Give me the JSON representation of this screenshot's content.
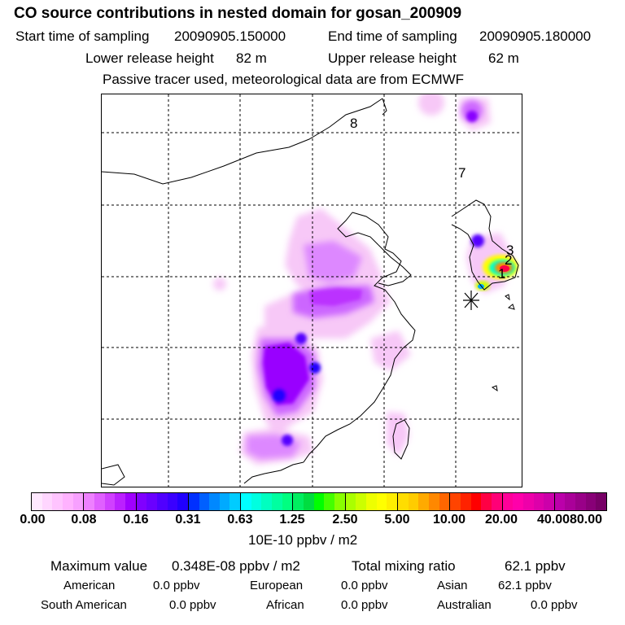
{
  "header": {
    "title": "CO  source contributions in nested domain for gosan_200909",
    "start_label": "Start time of sampling",
    "start_value": "20090905.150000",
    "end_label": "End time of sampling",
    "end_value": "20090905.180000",
    "lower_label": "Lower release height",
    "lower_value": "82 m",
    "upper_label": "Upper release height",
    "upper_value": "62 m",
    "note": "Passive tracer used, meteorological data are from ECMWF"
  },
  "map": {
    "region_labels": [
      "8",
      "7",
      "3",
      "2",
      "1"
    ],
    "receptor_marker": "asterisk",
    "colors": {
      "light": "#f7c8f7",
      "mid": "#cc66ff",
      "purple": "#8800ff",
      "blue": "#2200ff",
      "hotspot": "#ff0044"
    }
  },
  "colorbar": {
    "ticks": [
      "0.00",
      "0.08",
      "0.16",
      "0.31",
      "0.63",
      "1.25",
      "2.50",
      "5.00",
      "10.00",
      "20.00",
      "40.00",
      "80.00"
    ],
    "units": "10E-10 ppbv / m2",
    "colors": [
      "#ffe8ff",
      "#ffd6ff",
      "#ffc4ff",
      "#ffb2ff",
      "#f7a0ff",
      "#ee80ff",
      "#e060ff",
      "#d040ff",
      "#bb20ff",
      "#a000ff",
      "#8000ff",
      "#6a00ff",
      "#5000ff",
      "#3a00ff",
      "#2000ff",
      "#0030ff",
      "#0060ff",
      "#0088ff",
      "#00aaff",
      "#00ccff",
      "#00ffff",
      "#00ffe0",
      "#00ffc0",
      "#00ffa0",
      "#00ff80",
      "#00ee60",
      "#00dd40",
      "#00ff00",
      "#44ff00",
      "#88ff00",
      "#aaff00",
      "#ccff00",
      "#eeff00",
      "#ffff00",
      "#ffee00",
      "#ffdd00",
      "#ffcc00",
      "#ffaa00",
      "#ff8800",
      "#ff6600",
      "#ff4400",
      "#ff2200",
      "#ff0000",
      "#ff0044",
      "#ff0077",
      "#ff0099",
      "#ff00aa",
      "#ee00aa",
      "#dd00aa",
      "#cc00aa",
      "#bb00aa",
      "#aa0099",
      "#990088",
      "#880077",
      "#770066"
    ]
  },
  "summary": {
    "max_label": "Maximum value",
    "max_value": "0.348E-08 ppbv / m2",
    "total_label": "Total mixing ratio",
    "total_value": "62.1 ppbv",
    "regions": [
      {
        "name": "American",
        "value": "0.0 ppbv"
      },
      {
        "name": "European",
        "value": "0.0 ppbv"
      },
      {
        "name": "Asian",
        "value": "62.1 ppbv"
      },
      {
        "name": "South American",
        "value": "0.0 ppbv"
      },
      {
        "name": "African",
        "value": "0.0 ppbv"
      },
      {
        "name": "Australian",
        "value": "0.0 ppbv"
      }
    ]
  }
}
